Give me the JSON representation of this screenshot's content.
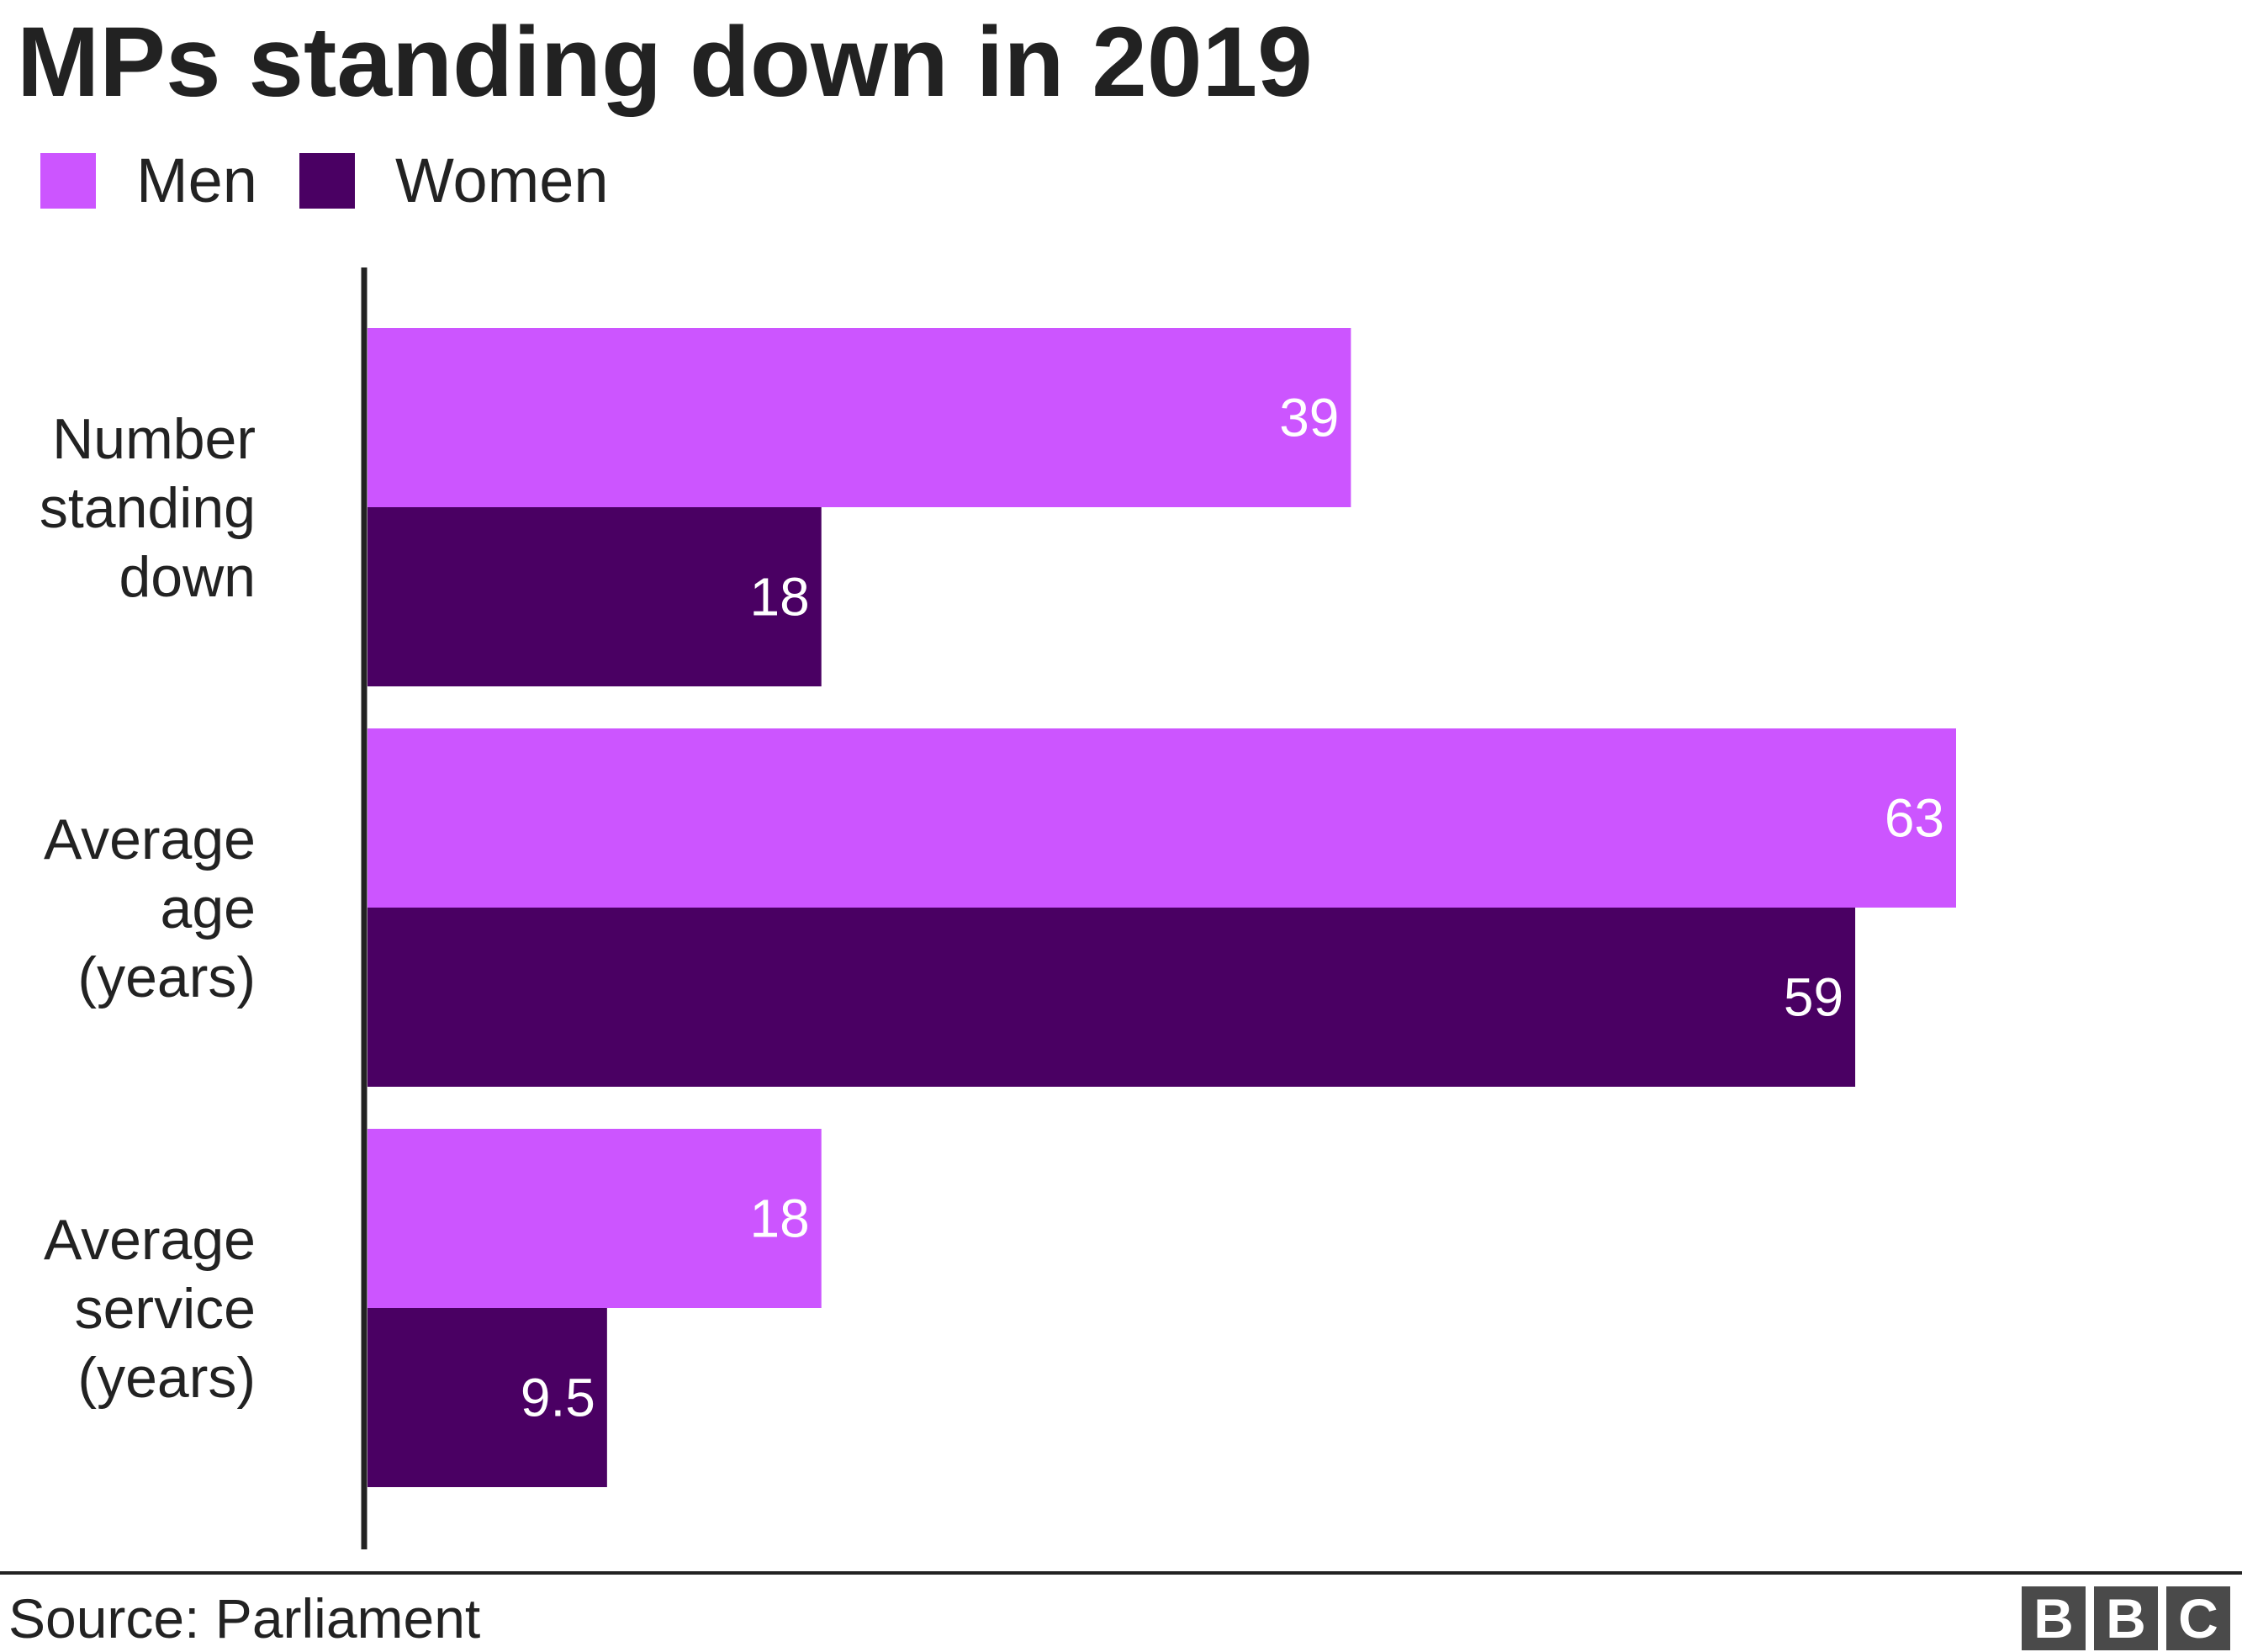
{
  "title": "MPs standing down in 2019",
  "legend": [
    {
      "label": "Men",
      "color": "#cc55ff"
    },
    {
      "label": "Women",
      "color": "#4a0063"
    }
  ],
  "source": "Source: Parliament",
  "logo": [
    "B",
    "B",
    "C"
  ],
  "chart_data": {
    "type": "bar",
    "orientation": "horizontal",
    "title": "MPs standing down in 2019",
    "categories": [
      [
        "Number",
        "standing",
        "down"
      ],
      [
        "Average",
        "age",
        "(years)"
      ],
      [
        "Average",
        "service",
        "(years)"
      ]
    ],
    "series": [
      {
        "name": "Men",
        "color": "#cc55ff",
        "values": [
          39,
          63,
          18
        ],
        "labels": [
          "39",
          "63",
          "18"
        ]
      },
      {
        "name": "Women",
        "color": "#4a0063",
        "values": [
          18,
          59,
          9.5
        ],
        "labels": [
          "18",
          "59",
          "9.5"
        ]
      }
    ],
    "xlim": [
      0,
      63
    ],
    "grid": false,
    "legend_position": "top-left"
  }
}
